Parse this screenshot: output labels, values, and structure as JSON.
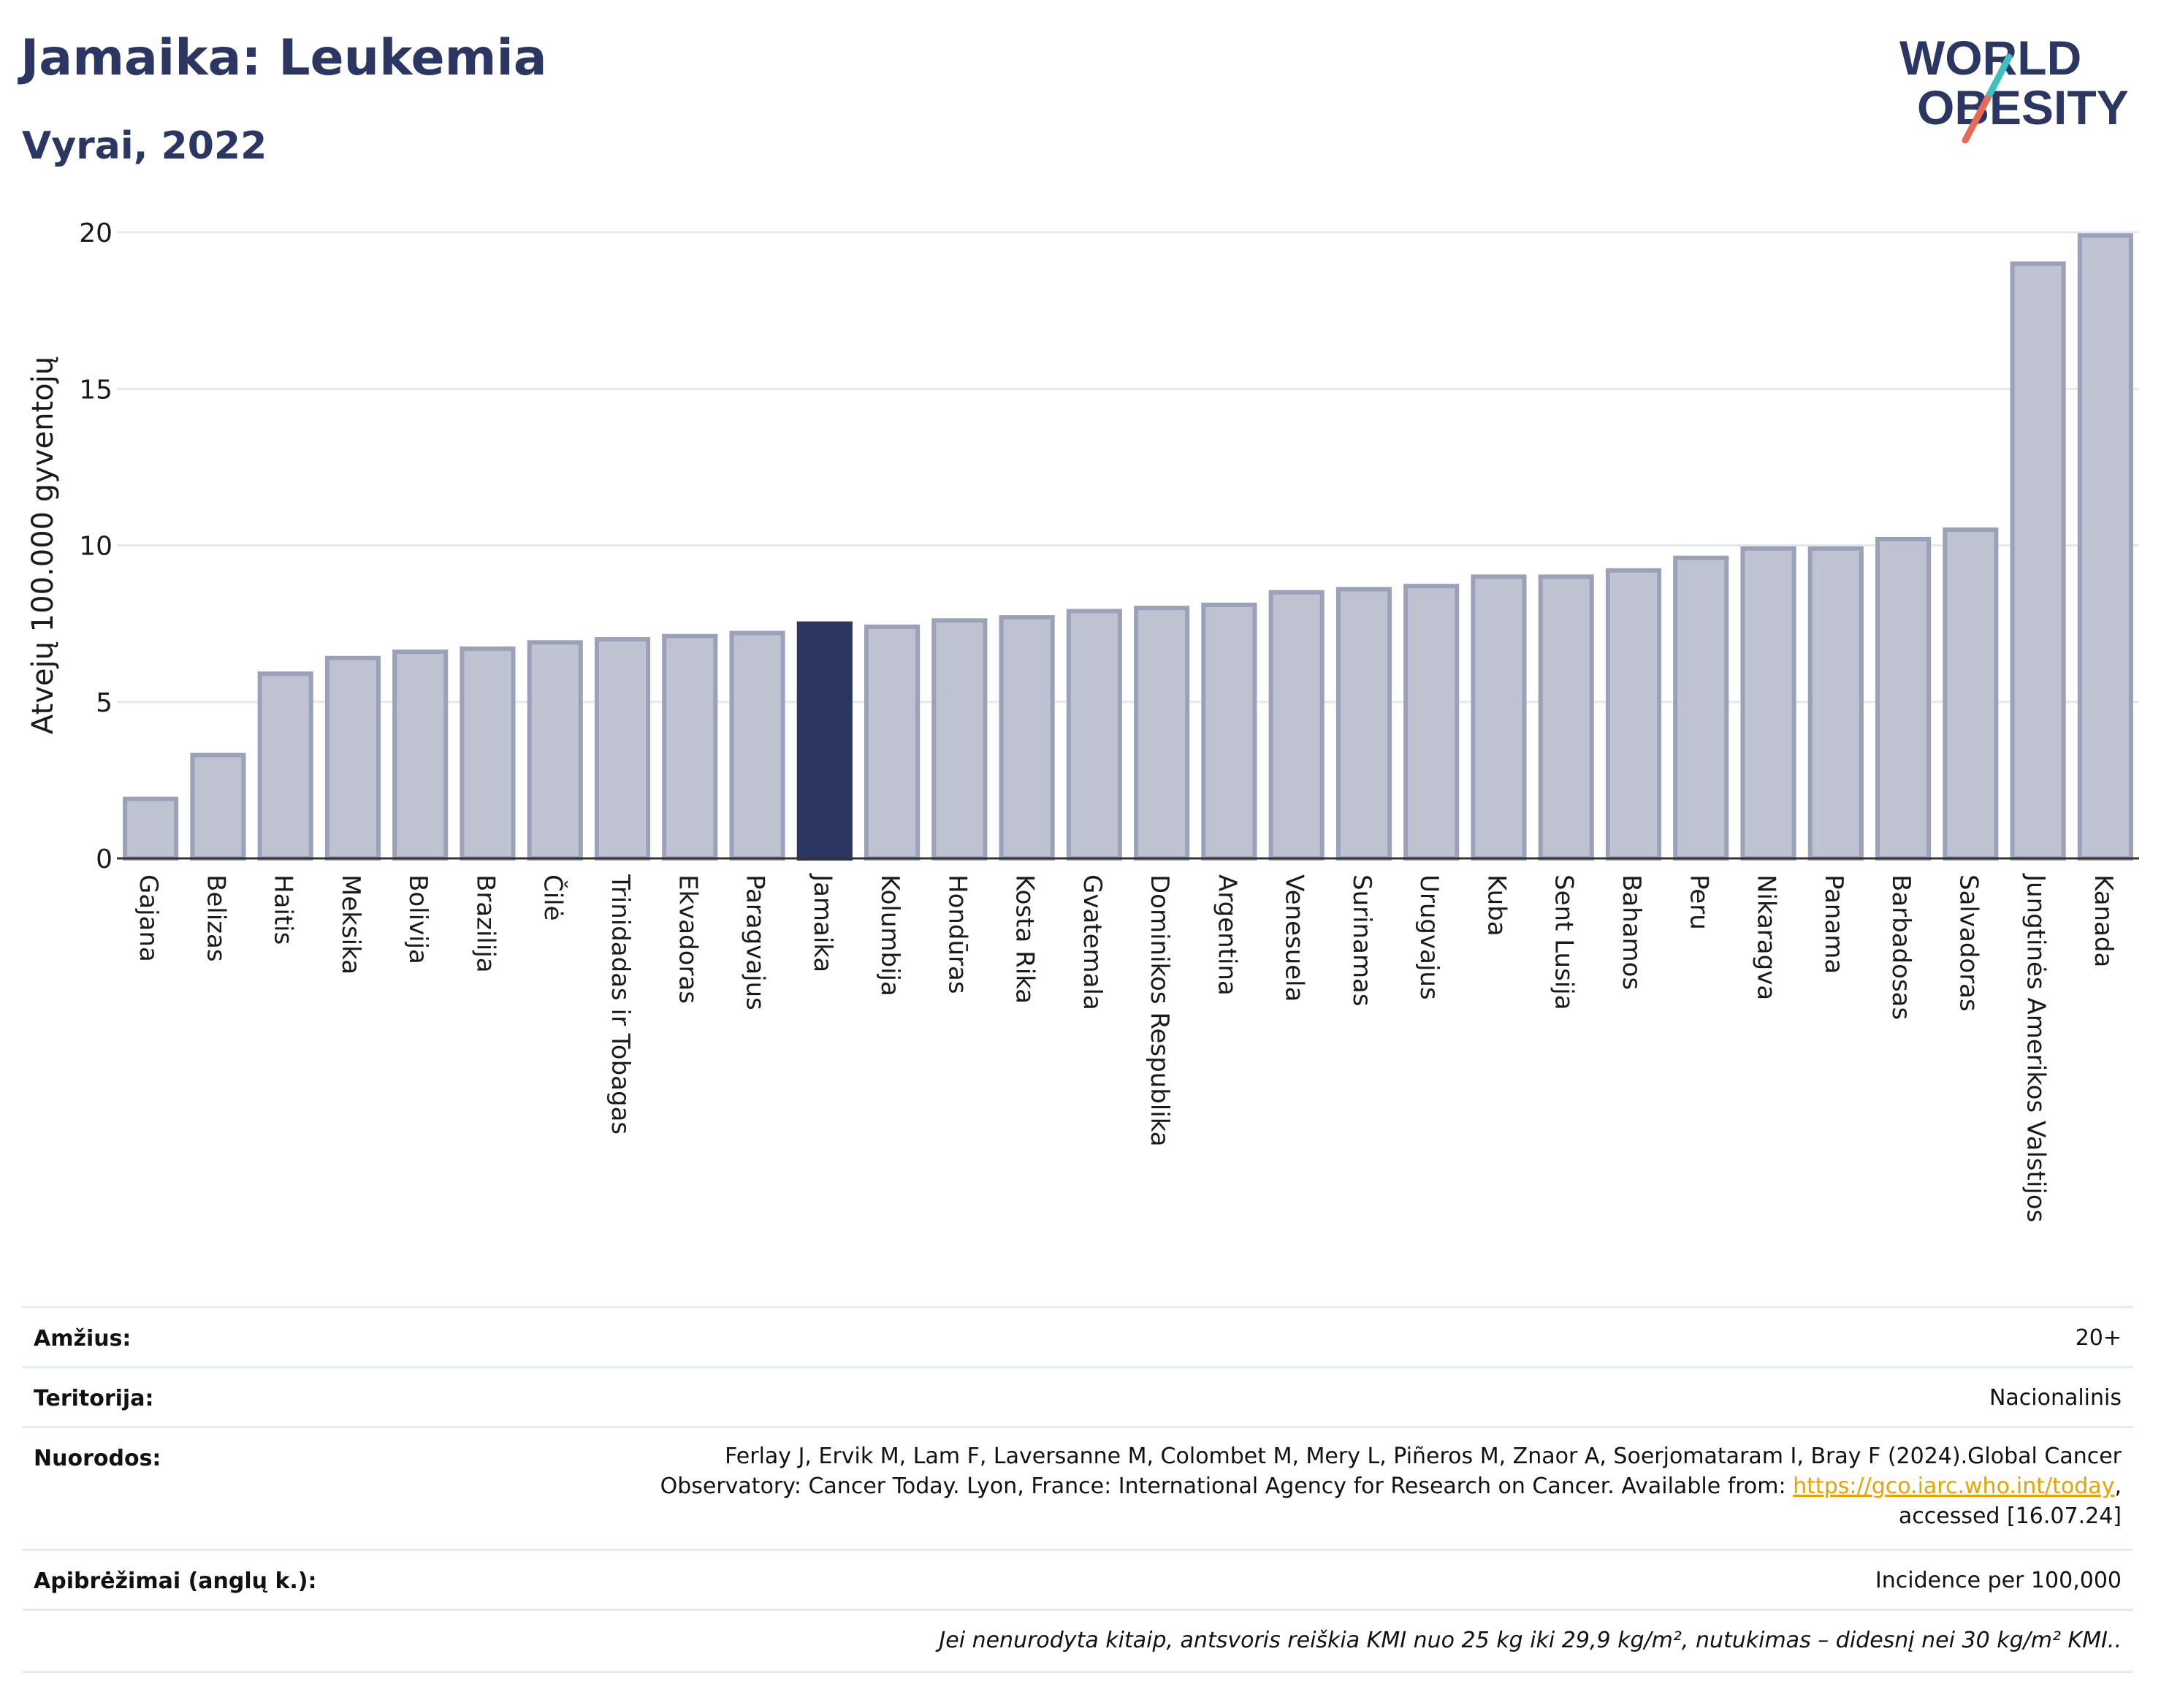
{
  "header": {
    "title": "Jamaika: Leukemia",
    "subtitle": "Vyrai, 2022",
    "logo_line1": "WORLD",
    "logo_line2": "OBESITY"
  },
  "colors": {
    "title": "#2b3663",
    "bar": "#bfc3d1",
    "bar_border": "#9ba1b8",
    "highlight": "#2b3663",
    "grid": "#e6e8ef",
    "link": "#e8a300",
    "logo_teal": "#3cc0c0",
    "logo_coral": "#e86a55"
  },
  "chart_data": {
    "type": "bar",
    "ylabel": "Atvejų 100.000 gyventojų",
    "xlabel": "",
    "ylim": [
      0,
      20
    ],
    "yticks": [
      0,
      5,
      10,
      15,
      20
    ],
    "grid": true,
    "highlight": "Jamaika",
    "categories": [
      "Gajana",
      "Belizas",
      "Haitis",
      "Meksika",
      "Bolivija",
      "Brazilija",
      "Čilė",
      "Trinidadas ir Tobagas",
      "Ekvadoras",
      "Paragvajus",
      "Jamaika",
      "Kolumbija",
      "Hondūras",
      "Kosta Rika",
      "Gvatemala",
      "Dominikos Respublika",
      "Argentina",
      "Venesuela",
      "Surinamas",
      "Urugvajus",
      "Kuba",
      "Sent Lusija",
      "Bahamos",
      "Peru",
      "Nikaragva",
      "Panama",
      "Barbadosas",
      "Salvadoras",
      "Jungtinės Amerikos Valstijos",
      "Kanada"
    ],
    "values": [
      1.9,
      3.3,
      5.9,
      6.4,
      6.6,
      6.7,
      6.9,
      7.0,
      7.1,
      7.2,
      7.5,
      7.4,
      7.6,
      7.7,
      7.9,
      8.0,
      8.1,
      8.5,
      8.6,
      8.7,
      9.0,
      9.0,
      9.2,
      9.6,
      9.9,
      9.9,
      10.2,
      10.5,
      19.0,
      19.9
    ]
  },
  "info": {
    "age_label": "Amžius:",
    "age_value": "20+",
    "territory_label": "Teritorija:",
    "territory_value": "Nacionalinis",
    "refs_label": "Nuorodos:",
    "refs_line1": "Ferlay J, Ervik M, Lam F, Laversanne M, Colombet M, Mery L, Piñeros M, Znaor A, Soerjomataram I, Bray F (2024).Global Cancer",
    "refs_line2": "Observatory: Cancer Today. Lyon, France: International Agency for Research on Cancer. Available from: ",
    "refs_link": "https://gco.iarc.who.int/today",
    "refs_line2_end": ",",
    "refs_line3": "accessed [16.07.24]",
    "def_label": "Apibrėžimai (anglų k.):",
    "def_value": "Incidence per 100,000",
    "note": "Jei nenurodyta kitaip, antsvoris reiškia KMI nuo 25 kg iki 29,9 kg/m², nutukimas – didesnį nei 30 kg/m² KMI.."
  }
}
